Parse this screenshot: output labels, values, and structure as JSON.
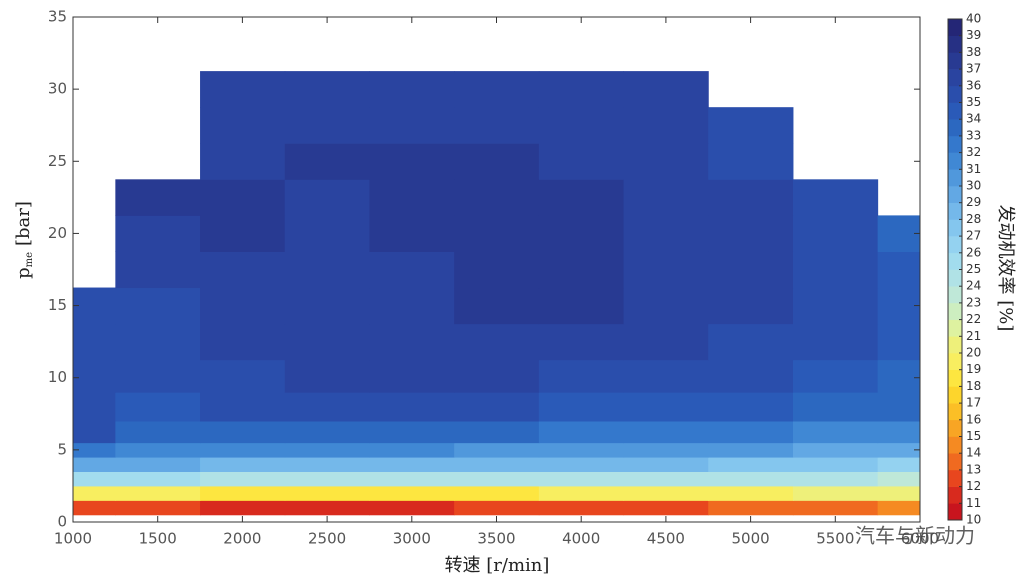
{
  "chart_data": {
    "type": "heatmap",
    "xlabel": "转速 [r/min]",
    "ylabel": {
      "main": "p",
      "sub": "me",
      "unit": "[bar]"
    },
    "colorbar_label": "发动机效率 [%]",
    "watermark": "汽车与新动力",
    "xlim": [
      1000,
      6000
    ],
    "ylim": [
      0,
      35
    ],
    "xticks": [
      1000,
      1500,
      2000,
      2500,
      3000,
      3500,
      4000,
      4500,
      5000,
      5500,
      6000
    ],
    "yticks": [
      0,
      5,
      10,
      15,
      20,
      25,
      30,
      35
    ],
    "x": [
      1000,
      1500,
      2000,
      2500,
      3000,
      3500,
      4000,
      4500,
      5000,
      5500,
      6000
    ],
    "y": [
      1,
      2,
      3,
      4,
      5,
      6,
      8,
      10,
      12.5,
      15,
      17.5,
      20,
      22.5,
      25,
      27.5,
      30
    ],
    "z": [
      [
        12,
        12,
        11,
        11,
        11,
        12,
        12,
        12,
        13,
        13,
        14
      ],
      [
        19,
        19,
        18,
        18,
        18,
        18,
        19,
        19,
        19,
        20,
        20
      ],
      [
        25,
        25,
        24,
        24,
        24,
        24,
        24,
        24,
        24,
        24,
        23
      ],
      [
        29,
        29,
        28,
        28,
        28,
        28,
        28,
        28,
        27,
        27,
        26
      ],
      [
        32,
        31,
        31,
        31,
        31,
        30,
        30,
        30,
        30,
        29,
        29
      ],
      [
        35,
        33,
        33,
        33,
        33,
        33,
        32,
        32,
        32,
        31,
        31
      ],
      [
        35,
        34,
        35,
        35,
        35,
        35,
        34,
        34,
        34,
        33,
        33
      ],
      [
        35,
        35,
        35,
        36,
        36,
        36,
        35,
        35,
        35,
        34,
        33
      ],
      [
        35,
        35,
        36,
        36,
        36,
        36,
        36,
        36,
        35,
        35,
        34
      ],
      [
        35,
        35,
        36,
        36,
        36,
        37,
        37,
        36,
        36,
        35,
        34
      ],
      [
        null,
        36,
        36,
        36,
        36,
        37,
        37,
        36,
        36,
        35,
        34
      ],
      [
        null,
        36,
        37,
        36,
        37,
        37,
        37,
        36,
        36,
        35,
        33
      ],
      [
        null,
        37,
        37,
        36,
        37,
        37,
        37,
        36,
        36,
        35,
        null
      ],
      [
        null,
        null,
        36,
        37,
        37,
        37,
        36,
        36,
        35,
        null,
        null
      ],
      [
        null,
        null,
        36,
        36,
        36,
        36,
        36,
        36,
        35,
        null,
        null
      ],
      [
        null,
        null,
        36,
        36,
        36,
        36,
        36,
        36,
        null,
        null,
        null
      ]
    ],
    "colorbar_ticks": [
      10,
      11,
      12,
      13,
      14,
      15,
      16,
      17,
      18,
      19,
      20,
      21,
      22,
      23,
      24,
      25,
      26,
      27,
      28,
      29,
      30,
      31,
      32,
      33,
      34,
      35,
      36,
      37,
      38,
      39,
      40
    ],
    "colors": [
      "#c8141e",
      "#d82a1e",
      "#e8461e",
      "#f06a20",
      "#f58a22",
      "#f8a524",
      "#fbbf26",
      "#fdd52c",
      "#fde640",
      "#f8ee60",
      "#eef07a",
      "#def2a0",
      "#cdeec0",
      "#bfe8d8",
      "#b0e2e6",
      "#a2dcee",
      "#94d2f0",
      "#84c6ee",
      "#74b8ea",
      "#62a8e4",
      "#5098dc",
      "#4088d4",
      "#3478cc",
      "#2c68c0",
      "#2a5ab8",
      "#2a4eac",
      "#2a44a0",
      "#283a92",
      "#263084",
      "#242676"
    ]
  }
}
